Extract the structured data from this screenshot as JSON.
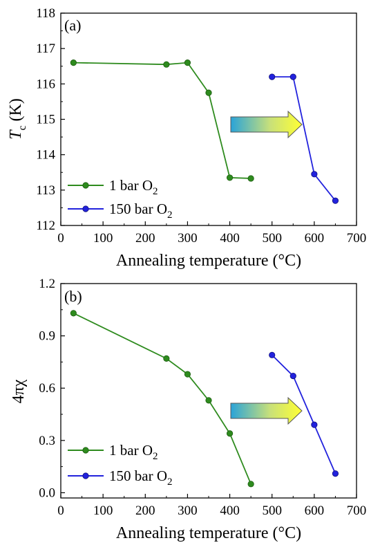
{
  "chart_data": [
    {
      "type": "line",
      "panel_label": "(a)",
      "xlabel": "Annealing temperature (°C)",
      "ylabel_main": "T",
      "ylabel_sub": "c",
      "ylabel_unit": " (K)",
      "xlim": [
        0,
        700
      ],
      "ylim": [
        112,
        118
      ],
      "xticks": [
        "0",
        "100",
        "200",
        "300",
        "400",
        "500",
        "600",
        "700"
      ],
      "yticks": [
        "112",
        "113",
        "114",
        "115",
        "116",
        "117",
        "118"
      ],
      "legend_position": "bottom-left",
      "annotation": "gradient arrow pointing right",
      "series": [
        {
          "label_main": "1 bar O",
          "label_sub": "2",
          "color": "#2e8b1e",
          "x": [
            30,
            250,
            300,
            350,
            400,
            450
          ],
          "y": [
            116.6,
            116.55,
            116.6,
            115.75,
            113.35,
            113.33
          ]
        },
        {
          "label_main": "150 bar O",
          "label_sub": "2",
          "color": "#2222dd",
          "x": [
            500,
            550,
            600,
            650
          ],
          "y": [
            116.2,
            116.2,
            113.45,
            112.7
          ]
        }
      ]
    },
    {
      "type": "line",
      "panel_label": "(b)",
      "xlabel": "Annealing temperature (°C)",
      "ylabel_main": "4πχ",
      "ylabel_sub": "",
      "ylabel_unit": "",
      "xlim": [
        0,
        700
      ],
      "ylim": [
        -0.03,
        1.2
      ],
      "xticks": [
        "0",
        "100",
        "200",
        "300",
        "400",
        "500",
        "600",
        "700"
      ],
      "yticks": [
        "0.0",
        "0.3",
        "0.6",
        "0.9",
        "1.2"
      ],
      "legend_position": "bottom-left",
      "annotation": "gradient arrow pointing right",
      "series": [
        {
          "label_main": "1 bar O",
          "label_sub": "2",
          "color": "#2e8b1e",
          "x": [
            30,
            250,
            300,
            350,
            400,
            450
          ],
          "y": [
            1.03,
            0.77,
            0.68,
            0.53,
            0.34,
            0.05
          ]
        },
        {
          "label_main": "150 bar O",
          "label_sub": "2",
          "color": "#2222dd",
          "x": [
            500,
            550,
            600,
            650
          ],
          "y": [
            0.79,
            0.67,
            0.39,
            0.11
          ]
        }
      ]
    }
  ]
}
